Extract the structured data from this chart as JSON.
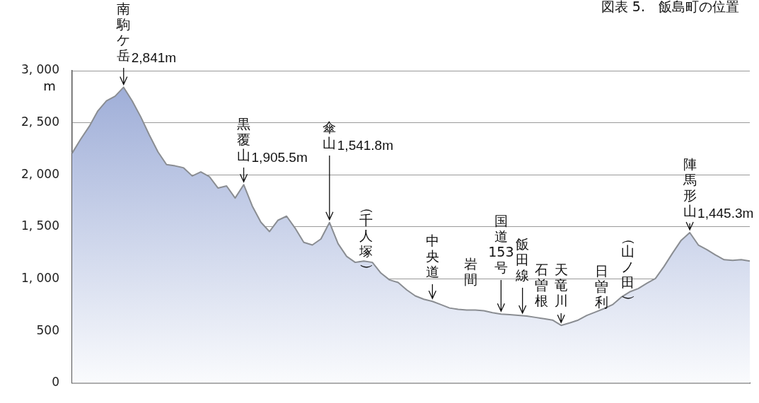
{
  "chart_data": {
    "type": "area",
    "title": "図表 5.　飯島町の位置",
    "ylabel": "m",
    "categories": [
      null,
      null,
      null,
      null,
      null,
      null,
      null,
      null,
      null,
      null,
      null,
      null,
      null,
      null,
      null,
      null,
      null,
      null,
      null,
      null,
      null,
      null,
      null,
      null,
      null,
      null,
      null,
      null,
      null,
      null,
      null,
      null,
      null,
      null,
      null,
      null,
      null,
      null,
      null,
      null,
      null,
      null,
      null,
      null,
      null,
      null,
      null,
      null,
      null,
      null,
      null,
      null,
      null,
      null,
      null,
      null,
      null,
      null,
      null,
      null,
      null,
      null,
      null,
      null,
      null,
      null,
      null,
      null,
      null,
      null,
      null,
      null,
      null,
      null,
      null,
      null,
      null,
      null,
      null,
      null
    ],
    "series": [
      {
        "color": "#9aaad6",
        "values": [
          2208,
          2343,
          2466,
          2614,
          2710,
          2755,
          2841,
          2710,
          2556,
          2382,
          2221,
          2099,
          2086,
          2067,
          1989,
          2028,
          1983,
          1873,
          1893,
          1777,
          1905.5,
          1700,
          1545,
          1455,
          1564,
          1603,
          1487,
          1352,
          1326,
          1384,
          1541.8,
          1339,
          1217,
          1159,
          1172,
          1159,
          1056,
          991,
          966,
          895,
          837,
          805,
          785,
          753,
          721,
          708,
          702,
          702,
          695,
          676,
          663,
          657,
          650,
          644,
          631,
          618,
          605,
          554,
          578,
          605,
          650,
          682,
          715,
          753,
          824,
          876,
          908,
          959,
          1004,
          1120,
          1249,
          1371,
          1445.3,
          1326,
          1281,
          1230,
          1185,
          1178,
          1185,
          1172
        ]
      }
    ],
    "ylim": [
      0,
      3000
    ],
    "yticks": [
      0,
      500,
      {
        "value": 1000,
        "label": "1, 000"
      },
      {
        "value": 1500,
        "label": "1, 500"
      },
      {
        "value": 2000,
        "label": "2, 000"
      },
      {
        "value": 2500,
        "label": "2, 500"
      },
      {
        "value": 3000,
        "label": "3, 000"
      }
    ],
    "grid": "y",
    "tick_labels": "y",
    "annotations": [
      "南駒ケ岳2,841m",
      "黒覆山1,905.5m",
      "傘山1,541.8m",
      "（千人塚）",
      "中央道",
      "岩間",
      "国道153号",
      "飯田線",
      "石曽根",
      "天竜川",
      "日曽利",
      "（山ノ田）",
      "陣馬形山1,445.3m"
    ]
  }
}
